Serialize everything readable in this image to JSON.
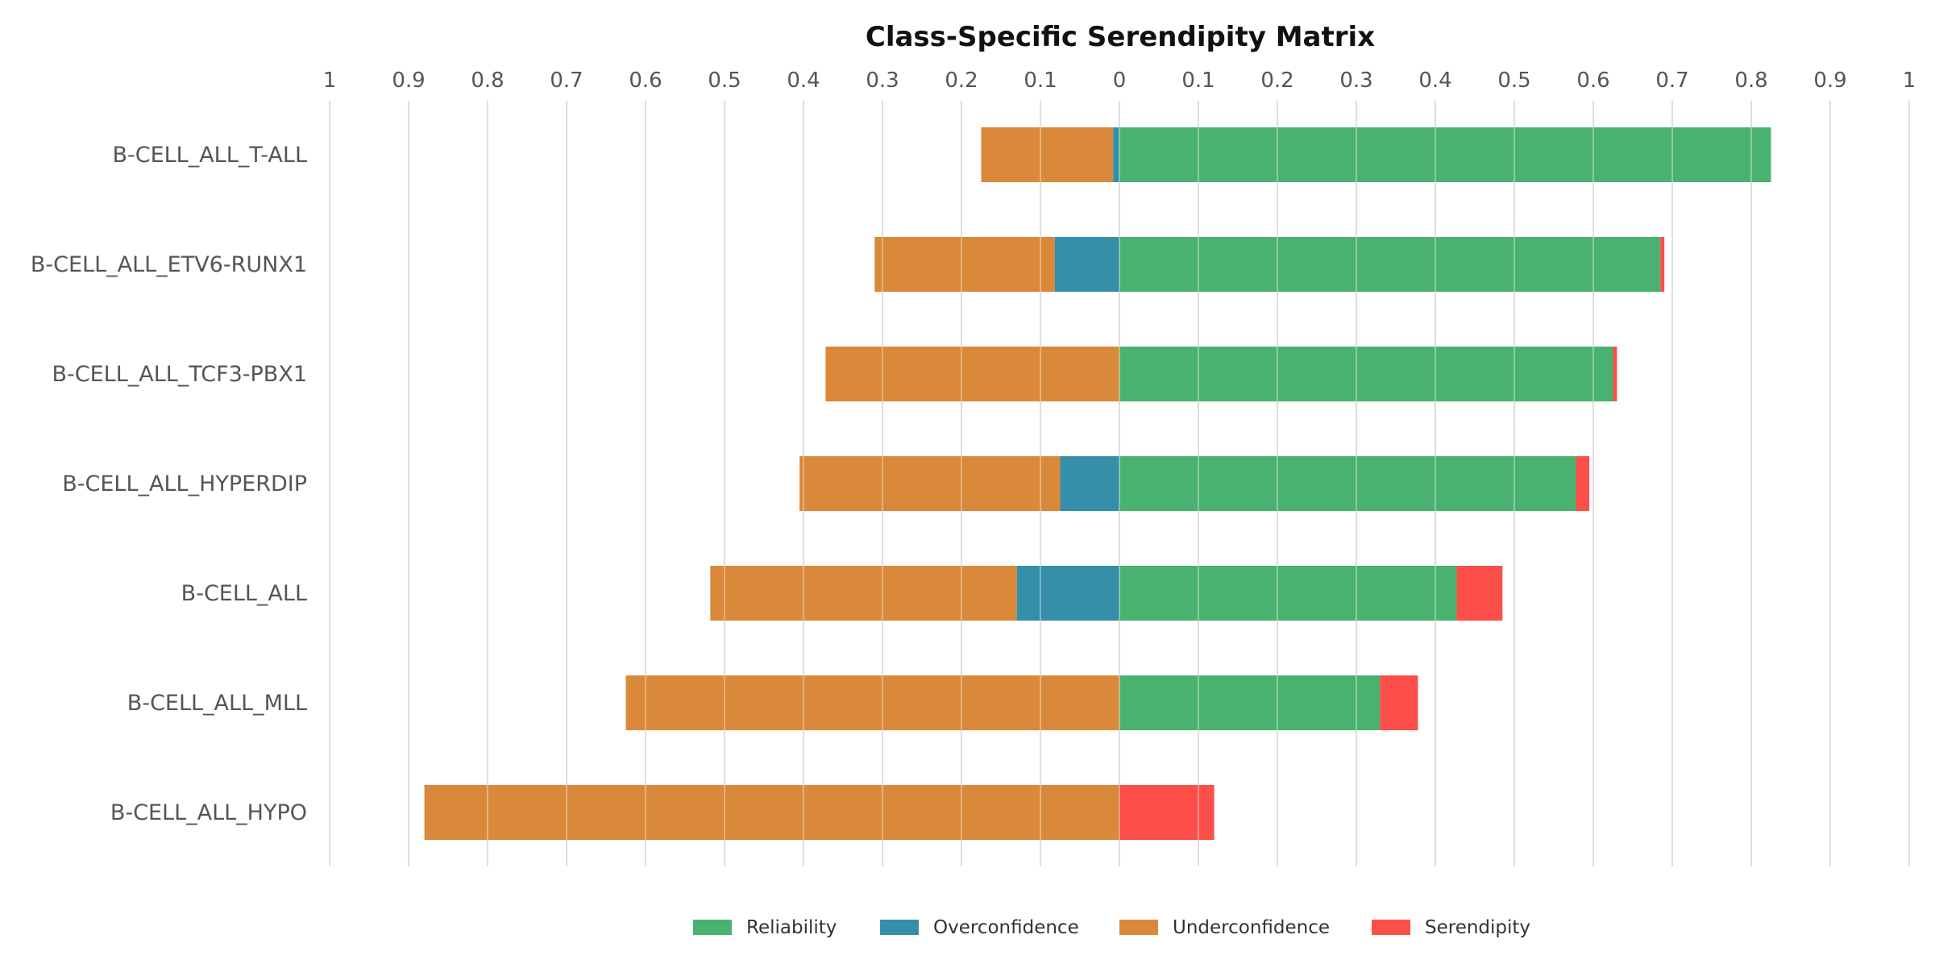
{
  "chart_data": {
    "type": "bar",
    "orientation": "horizontal",
    "stacked": "diverging",
    "title": "Class-Specific Serendipity Matrix",
    "xlabel": "",
    "ylabel": "",
    "xlim": [
      -1,
      1
    ],
    "ticks": [
      {
        "value": -1,
        "label": "1"
      },
      {
        "value": -0.9,
        "label": "0.9"
      },
      {
        "value": -0.8,
        "label": "0.8"
      },
      {
        "value": -0.7,
        "label": "0.7"
      },
      {
        "value": -0.6,
        "label": "0.6"
      },
      {
        "value": -0.5,
        "label": "0.5"
      },
      {
        "value": -0.4,
        "label": "0.4"
      },
      {
        "value": -0.3,
        "label": "0.3"
      },
      {
        "value": -0.2,
        "label": "0.2"
      },
      {
        "value": -0.1,
        "label": "0.1"
      },
      {
        "value": 0,
        "label": "0"
      },
      {
        "value": 0.1,
        "label": "0.1"
      },
      {
        "value": 0.2,
        "label": "0.2"
      },
      {
        "value": 0.3,
        "label": "0.3"
      },
      {
        "value": 0.4,
        "label": "0.4"
      },
      {
        "value": 0.5,
        "label": "0.5"
      },
      {
        "value": 0.6,
        "label": "0.6"
      },
      {
        "value": 0.7,
        "label": "0.7"
      },
      {
        "value": 0.8,
        "label": "0.8"
      },
      {
        "value": 0.9,
        "label": "0.9"
      },
      {
        "value": 1,
        "label": "1"
      }
    ],
    "grid": true,
    "legend_position": "bottom-center",
    "categories": [
      "B-CELL_ALL_T-ALL",
      "B-CELL_ALL_ETV6-RUNX1",
      "B-CELL_ALL_TCF3-PBX1",
      "B-CELL_ALL_HYPERDIP",
      "B-CELL_ALL",
      "B-CELL_ALL_MLL",
      "B-CELL_ALL_HYPO"
    ],
    "series": [
      {
        "name": "Reliability",
        "side": "right",
        "color": "#4ab271",
        "values": [
          0.825,
          0.685,
          0.625,
          0.578,
          0.427,
          0.33,
          0.0
        ]
      },
      {
        "name": "Overconfidence",
        "side": "left",
        "color": "#368fa8",
        "values": [
          0.008,
          0.082,
          0.0,
          0.075,
          0.13,
          0.0,
          0.0
        ]
      },
      {
        "name": "Underconfidence",
        "side": "left",
        "color": "#da883a",
        "values": [
          0.167,
          0.228,
          0.372,
          0.33,
          0.388,
          0.625,
          0.88
        ]
      },
      {
        "name": "Serendipity",
        "side": "right",
        "color": "#fc4f4a",
        "values": [
          0.0,
          0.005,
          0.005,
          0.017,
          0.058,
          0.048,
          0.12
        ]
      }
    ]
  }
}
